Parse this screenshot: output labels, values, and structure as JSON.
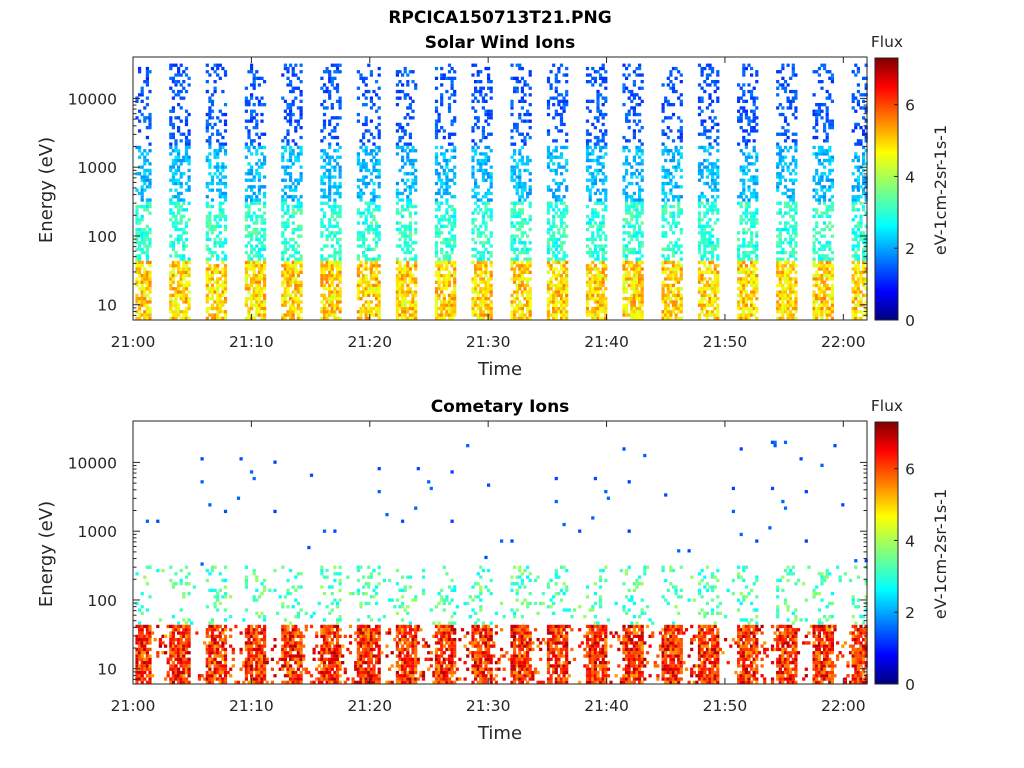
{
  "figure_title": "RPCICA150713T21.PNG",
  "chart_data": [
    {
      "type": "heatmap",
      "title": "Solar Wind Ions",
      "xlabel": "Time",
      "ylabel": "Energy (eV)",
      "y_scale": "log",
      "xlim": [
        "21:00",
        "22:02"
      ],
      "ylim": [
        6,
        40000
      ],
      "x_tick_labels": [
        "21:00",
        "21:10",
        "21:20",
        "21:30",
        "21:40",
        "21:50",
        "22:00"
      ],
      "y_tick_labels": [
        "10",
        "100",
        "1000",
        "10000"
      ],
      "colorbar": {
        "title": "Flux",
        "unit": "eV-1cm-2sr-1s-1",
        "range": [
          0,
          7.3
        ],
        "ticks": [
          "0",
          "2",
          "4",
          "6"
        ],
        "colormap": "jet"
      },
      "scan_period_minutes": 3.2,
      "flux_by_energy_band": [
        {
          "energy_eV": "10-40",
          "flux": 4.2
        },
        {
          "energy_eV": "40-300",
          "flux": 3.0
        },
        {
          "energy_eV": "300-2000",
          "flux": 2.2
        },
        {
          "energy_eV": "2000-30000",
          "flux": 1.5
        }
      ],
      "grid": false
    },
    {
      "type": "heatmap",
      "title": "Cometary Ions",
      "xlabel": "Time",
      "ylabel": "Energy (eV)",
      "y_scale": "log",
      "xlim": [
        "21:00",
        "22:02"
      ],
      "ylim": [
        6,
        40000
      ],
      "x_tick_labels": [
        "21:00",
        "21:10",
        "21:20",
        "21:30",
        "21:40",
        "21:50",
        "22:00"
      ],
      "y_tick_labels": [
        "10",
        "100",
        "1000",
        "10000"
      ],
      "colorbar": {
        "title": "Flux",
        "unit": "eV-1cm-2sr-1s-1",
        "range": [
          0,
          7.3
        ],
        "ticks": [
          "0",
          "2",
          "4",
          "6"
        ],
        "colormap": "jet"
      },
      "scan_period_minutes": 3.2,
      "flux_by_energy_band": [
        {
          "energy_eV": "6-40",
          "flux": 6.2
        },
        {
          "energy_eV": "40-300",
          "flux": 3.0
        },
        {
          "energy_eV": "300-20000",
          "flux": 1.4
        }
      ],
      "grid": false
    }
  ]
}
